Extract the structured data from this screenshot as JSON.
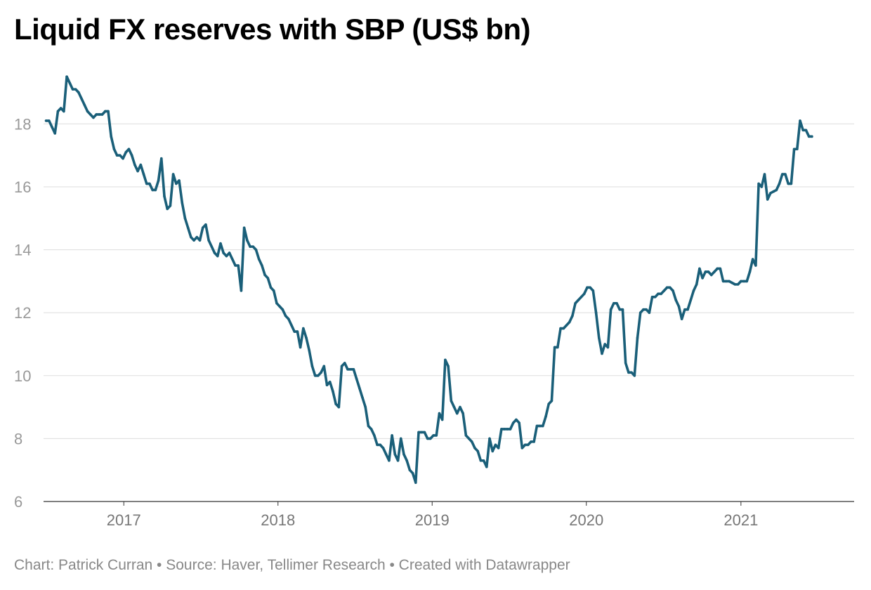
{
  "chart_data": {
    "type": "line",
    "title": "Liquid FX reserves with SBP (US$ bn)",
    "xlabel": "",
    "ylabel": "",
    "ylim": [
      6,
      19.6
    ],
    "yticks": [
      6,
      8,
      10,
      12,
      14,
      16,
      18
    ],
    "xlim": [
      "2016-06-25",
      "2021-09-26"
    ],
    "xticks": [
      "2017",
      "2018",
      "2019",
      "2020",
      "2021"
    ],
    "grid": "horizontal",
    "legend": "none",
    "series": [
      {
        "color": "#1a5f79",
        "points": [
          [
            "2016-07-01",
            18.1
          ],
          [
            "2016-07-08",
            18.1
          ],
          [
            "2016-07-15",
            17.9
          ],
          [
            "2016-07-22",
            17.7
          ],
          [
            "2016-07-29",
            18.4
          ],
          [
            "2016-08-05",
            18.5
          ],
          [
            "2016-08-12",
            18.4
          ],
          [
            "2016-08-19",
            19.5
          ],
          [
            "2016-08-26",
            19.3
          ],
          [
            "2016-09-02",
            19.1
          ],
          [
            "2016-09-09",
            19.1
          ],
          [
            "2016-09-16",
            19.0
          ],
          [
            "2016-09-23",
            18.8
          ],
          [
            "2016-09-30",
            18.6
          ],
          [
            "2016-10-07",
            18.4
          ],
          [
            "2016-10-14",
            18.3
          ],
          [
            "2016-10-21",
            18.2
          ],
          [
            "2016-10-28",
            18.3
          ],
          [
            "2016-11-04",
            18.3
          ],
          [
            "2016-11-11",
            18.3
          ],
          [
            "2016-11-18",
            18.4
          ],
          [
            "2016-11-25",
            18.4
          ],
          [
            "2016-12-02",
            17.6
          ],
          [
            "2016-12-09",
            17.2
          ],
          [
            "2016-12-16",
            17.0
          ],
          [
            "2016-12-23",
            17.0
          ],
          [
            "2016-12-30",
            16.9
          ],
          [
            "2017-01-06",
            17.1
          ],
          [
            "2017-01-13",
            17.2
          ],
          [
            "2017-01-20",
            17.0
          ],
          [
            "2017-01-27",
            16.7
          ],
          [
            "2017-02-03",
            16.5
          ],
          [
            "2017-02-10",
            16.7
          ],
          [
            "2017-02-17",
            16.4
          ],
          [
            "2017-02-24",
            16.1
          ],
          [
            "2017-03-03",
            16.1
          ],
          [
            "2017-03-10",
            15.9
          ],
          [
            "2017-03-17",
            15.9
          ],
          [
            "2017-03-24",
            16.2
          ],
          [
            "2017-03-31",
            16.9
          ],
          [
            "2017-04-07",
            15.7
          ],
          [
            "2017-04-14",
            15.3
          ],
          [
            "2017-04-21",
            15.4
          ],
          [
            "2017-04-28",
            16.4
          ],
          [
            "2017-05-05",
            16.1
          ],
          [
            "2017-05-12",
            16.2
          ],
          [
            "2017-05-19",
            15.5
          ],
          [
            "2017-05-26",
            15.0
          ],
          [
            "2017-06-02",
            14.7
          ],
          [
            "2017-06-09",
            14.4
          ],
          [
            "2017-06-16",
            14.3
          ],
          [
            "2017-06-23",
            14.4
          ],
          [
            "2017-06-30",
            14.3
          ],
          [
            "2017-07-07",
            14.7
          ],
          [
            "2017-07-14",
            14.8
          ],
          [
            "2017-07-21",
            14.3
          ],
          [
            "2017-07-28",
            14.1
          ],
          [
            "2017-08-04",
            13.9
          ],
          [
            "2017-08-11",
            13.8
          ],
          [
            "2017-08-18",
            14.2
          ],
          [
            "2017-08-25",
            13.9
          ],
          [
            "2017-09-01",
            13.8
          ],
          [
            "2017-09-08",
            13.9
          ],
          [
            "2017-09-15",
            13.7
          ],
          [
            "2017-09-22",
            13.5
          ],
          [
            "2017-09-29",
            13.5
          ],
          [
            "2017-10-06",
            12.7
          ],
          [
            "2017-10-13",
            14.7
          ],
          [
            "2017-10-20",
            14.3
          ],
          [
            "2017-10-27",
            14.1
          ],
          [
            "2017-11-03",
            14.1
          ],
          [
            "2017-11-10",
            14.0
          ],
          [
            "2017-11-17",
            13.7
          ],
          [
            "2017-11-24",
            13.5
          ],
          [
            "2017-12-01",
            13.2
          ],
          [
            "2017-12-08",
            13.1
          ],
          [
            "2017-12-15",
            12.8
          ],
          [
            "2017-12-22",
            12.7
          ],
          [
            "2017-12-29",
            12.3
          ],
          [
            "2018-01-05",
            12.2
          ],
          [
            "2018-01-12",
            12.1
          ],
          [
            "2018-01-19",
            11.9
          ],
          [
            "2018-01-26",
            11.8
          ],
          [
            "2018-02-02",
            11.6
          ],
          [
            "2018-02-09",
            11.4
          ],
          [
            "2018-02-16",
            11.4
          ],
          [
            "2018-02-23",
            10.9
          ],
          [
            "2018-03-02",
            11.5
          ],
          [
            "2018-03-09",
            11.2
          ],
          [
            "2018-03-16",
            10.8
          ],
          [
            "2018-03-23",
            10.3
          ],
          [
            "2018-03-30",
            10.0
          ],
          [
            "2018-04-06",
            10.0
          ],
          [
            "2018-04-13",
            10.1
          ],
          [
            "2018-04-20",
            10.3
          ],
          [
            "2018-04-27",
            9.7
          ],
          [
            "2018-05-04",
            9.8
          ],
          [
            "2018-05-11",
            9.5
          ],
          [
            "2018-05-18",
            9.1
          ],
          [
            "2018-05-25",
            9.0
          ],
          [
            "2018-06-01",
            10.3
          ],
          [
            "2018-06-08",
            10.4
          ],
          [
            "2018-06-15",
            10.2
          ],
          [
            "2018-06-22",
            10.2
          ],
          [
            "2018-06-29",
            10.2
          ],
          [
            "2018-07-06",
            9.9
          ],
          [
            "2018-07-13",
            9.6
          ],
          [
            "2018-07-20",
            9.3
          ],
          [
            "2018-07-27",
            9.0
          ],
          [
            "2018-08-03",
            8.4
          ],
          [
            "2018-08-10",
            8.3
          ],
          [
            "2018-08-17",
            8.1
          ],
          [
            "2018-08-24",
            7.8
          ],
          [
            "2018-08-31",
            7.8
          ],
          [
            "2018-09-07",
            7.7
          ],
          [
            "2018-09-14",
            7.5
          ],
          [
            "2018-09-21",
            7.3
          ],
          [
            "2018-09-28",
            8.1
          ],
          [
            "2018-10-05",
            7.5
          ],
          [
            "2018-10-12",
            7.3
          ],
          [
            "2018-10-19",
            8.0
          ],
          [
            "2018-10-26",
            7.5
          ],
          [
            "2018-11-02",
            7.3
          ],
          [
            "2018-11-09",
            7.0
          ],
          [
            "2018-11-16",
            6.9
          ],
          [
            "2018-11-23",
            6.6
          ],
          [
            "2018-11-30",
            8.2
          ],
          [
            "2018-12-07",
            8.2
          ],
          [
            "2018-12-14",
            8.2
          ],
          [
            "2018-12-21",
            8.0
          ],
          [
            "2018-12-28",
            8.0
          ],
          [
            "2019-01-04",
            8.1
          ],
          [
            "2019-01-11",
            8.1
          ],
          [
            "2019-01-18",
            8.8
          ],
          [
            "2019-01-25",
            8.6
          ],
          [
            "2019-02-01",
            10.5
          ],
          [
            "2019-02-08",
            10.3
          ],
          [
            "2019-02-15",
            9.2
          ],
          [
            "2019-02-22",
            9.0
          ],
          [
            "2019-03-01",
            8.8
          ],
          [
            "2019-03-08",
            9.0
          ],
          [
            "2019-03-15",
            8.8
          ],
          [
            "2019-03-22",
            8.1
          ],
          [
            "2019-03-29",
            8.0
          ],
          [
            "2019-04-05",
            7.9
          ],
          [
            "2019-04-12",
            7.7
          ],
          [
            "2019-04-19",
            7.6
          ],
          [
            "2019-04-26",
            7.3
          ],
          [
            "2019-05-03",
            7.3
          ],
          [
            "2019-05-10",
            7.1
          ],
          [
            "2019-05-17",
            8.0
          ],
          [
            "2019-05-24",
            7.6
          ],
          [
            "2019-05-31",
            7.8
          ],
          [
            "2019-06-07",
            7.7
          ],
          [
            "2019-06-14",
            8.3
          ],
          [
            "2019-06-21",
            8.3
          ],
          [
            "2019-06-28",
            8.3
          ],
          [
            "2019-07-05",
            8.3
          ],
          [
            "2019-07-12",
            8.5
          ],
          [
            "2019-07-19",
            8.6
          ],
          [
            "2019-07-26",
            8.5
          ],
          [
            "2019-08-02",
            7.7
          ],
          [
            "2019-08-09",
            7.8
          ],
          [
            "2019-08-16",
            7.8
          ],
          [
            "2019-08-23",
            7.9
          ],
          [
            "2019-08-30",
            7.9
          ],
          [
            "2019-09-06",
            8.4
          ],
          [
            "2019-09-13",
            8.4
          ],
          [
            "2019-09-20",
            8.4
          ],
          [
            "2019-09-27",
            8.7
          ],
          [
            "2019-10-04",
            9.1
          ],
          [
            "2019-10-11",
            9.2
          ],
          [
            "2019-10-18",
            10.9
          ],
          [
            "2019-10-25",
            10.9
          ],
          [
            "2019-11-01",
            11.5
          ],
          [
            "2019-11-08",
            11.5
          ],
          [
            "2019-11-15",
            11.6
          ],
          [
            "2019-11-22",
            11.7
          ],
          [
            "2019-11-29",
            11.9
          ],
          [
            "2019-12-06",
            12.3
          ],
          [
            "2019-12-13",
            12.4
          ],
          [
            "2019-12-20",
            12.5
          ],
          [
            "2019-12-27",
            12.6
          ],
          [
            "2020-01-03",
            12.8
          ],
          [
            "2020-01-10",
            12.8
          ],
          [
            "2020-01-17",
            12.7
          ],
          [
            "2020-01-24",
            12.0
          ],
          [
            "2020-01-31",
            11.2
          ],
          [
            "2020-02-07",
            10.7
          ],
          [
            "2020-02-14",
            11.0
          ],
          [
            "2020-02-21",
            10.9
          ],
          [
            "2020-02-28",
            12.1
          ],
          [
            "2020-03-06",
            12.3
          ],
          [
            "2020-03-13",
            12.3
          ],
          [
            "2020-03-20",
            12.1
          ],
          [
            "2020-03-27",
            12.1
          ],
          [
            "2020-04-03",
            10.4
          ],
          [
            "2020-04-10",
            10.1
          ],
          [
            "2020-04-17",
            10.1
          ],
          [
            "2020-04-24",
            10.0
          ],
          [
            "2020-05-01",
            11.2
          ],
          [
            "2020-05-08",
            12.0
          ],
          [
            "2020-05-15",
            12.1
          ],
          [
            "2020-05-22",
            12.1
          ],
          [
            "2020-05-29",
            12.0
          ],
          [
            "2020-06-05",
            12.5
          ],
          [
            "2020-06-12",
            12.5
          ],
          [
            "2020-06-19",
            12.6
          ],
          [
            "2020-06-26",
            12.6
          ],
          [
            "2020-07-03",
            12.7
          ],
          [
            "2020-07-10",
            12.8
          ],
          [
            "2020-07-17",
            12.8
          ],
          [
            "2020-07-24",
            12.7
          ],
          [
            "2020-07-31",
            12.4
          ],
          [
            "2020-08-07",
            12.2
          ],
          [
            "2020-08-14",
            11.8
          ],
          [
            "2020-08-21",
            12.1
          ],
          [
            "2020-08-28",
            12.1
          ],
          [
            "2020-09-04",
            12.4
          ],
          [
            "2020-09-11",
            12.7
          ],
          [
            "2020-09-18",
            12.9
          ],
          [
            "2020-09-25",
            13.4
          ],
          [
            "2020-10-02",
            13.1
          ],
          [
            "2020-10-09",
            13.3
          ],
          [
            "2020-10-16",
            13.3
          ],
          [
            "2020-10-23",
            13.2
          ],
          [
            "2020-10-30",
            13.3
          ],
          [
            "2020-11-06",
            13.4
          ],
          [
            "2020-11-13",
            13.4
          ],
          [
            "2020-11-20",
            13.0
          ],
          [
            "2020-11-27",
            13.0
          ],
          [
            "2020-12-04",
            13.0
          ],
          [
            "2020-12-11",
            12.95
          ],
          [
            "2020-12-18",
            12.9
          ],
          [
            "2020-12-25",
            12.9
          ],
          [
            "2021-01-01",
            13.0
          ],
          [
            "2021-01-08",
            13.0
          ],
          [
            "2021-01-15",
            13.0
          ],
          [
            "2021-01-22",
            13.3
          ],
          [
            "2021-01-29",
            13.7
          ],
          [
            "2021-02-05",
            13.5
          ],
          [
            "2021-02-12",
            16.1
          ],
          [
            "2021-02-19",
            16.0
          ],
          [
            "2021-02-26",
            16.4
          ],
          [
            "2021-03-05",
            15.6
          ],
          [
            "2021-03-12",
            15.8
          ],
          [
            "2021-03-19",
            15.85
          ],
          [
            "2021-03-26",
            15.9
          ],
          [
            "2021-04-02",
            16.1
          ],
          [
            "2021-04-09",
            16.4
          ],
          [
            "2021-04-16",
            16.4
          ],
          [
            "2021-04-23",
            16.1
          ],
          [
            "2021-04-30",
            16.1
          ],
          [
            "2021-05-07",
            17.2
          ],
          [
            "2021-05-14",
            17.2
          ],
          [
            "2021-05-21",
            18.1
          ],
          [
            "2021-05-28",
            17.8
          ],
          [
            "2021-06-04",
            17.8
          ],
          [
            "2021-06-11",
            17.6
          ],
          [
            "2021-06-18",
            17.6
          ]
        ]
      }
    ]
  },
  "footer": {
    "credit": "Chart: Patrick Curran • Source: Haver, Tellimer Research • Created with Datawrapper"
  }
}
